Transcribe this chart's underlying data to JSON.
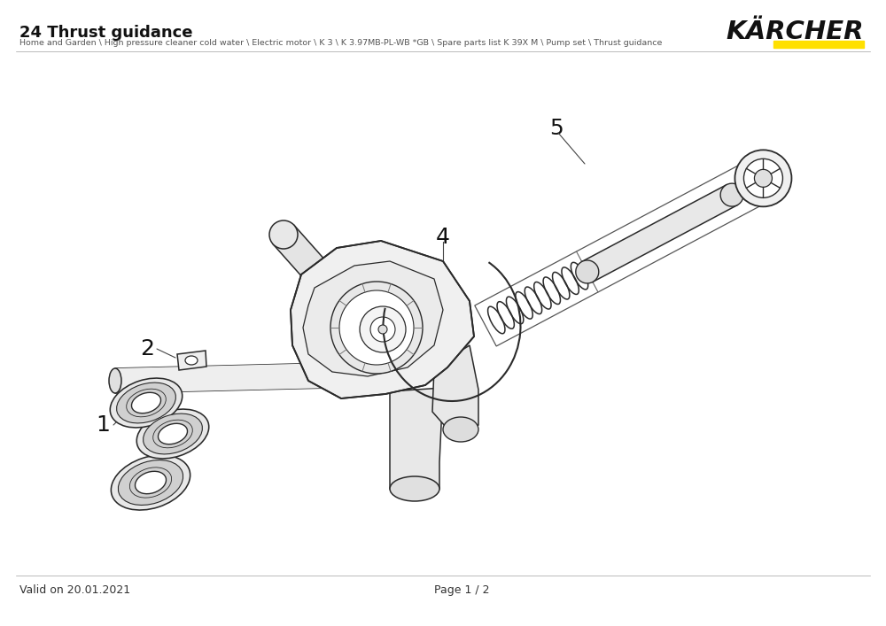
{
  "title": "24 Thrust guidance",
  "subtitle": "Home and Garden \\ High pressure cleaner cold water \\ Electric motor \\ K 3 \\ K 3.97MB-PL-WB *GB \\ Spare parts list K 39X M \\ Pump set \\ Thrust guidance",
  "brand": "KÄRCHER",
  "valid_text": "Valid on 20.01.2021",
  "page_text": "Page 1 / 2",
  "bg_color": "#ffffff",
  "lc": "#2a2a2a",
  "lc_light": "#555555",
  "karcher_yellow": "#FFE000",
  "label_fontsize": 18,
  "title_fontsize": 13,
  "subtitle_fontsize": 6.8,
  "footer_fontsize": 9
}
